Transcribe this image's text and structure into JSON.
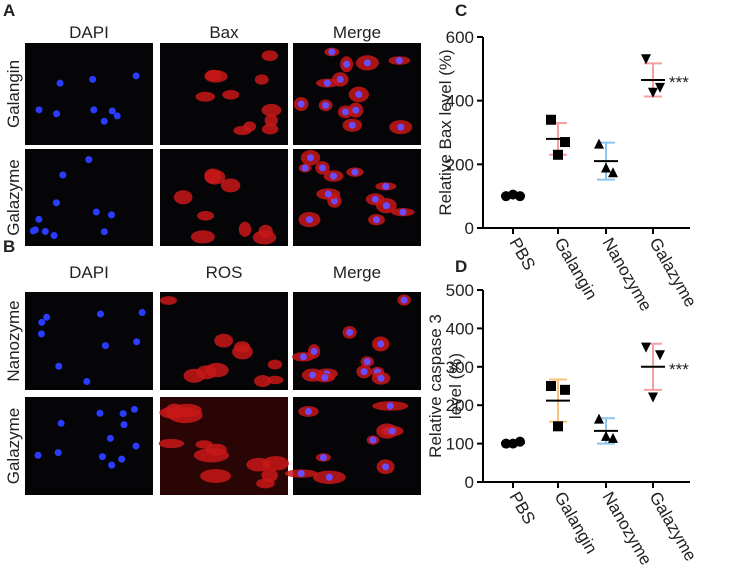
{
  "panel_labels": [
    "A",
    "B",
    "C",
    "D"
  ],
  "panel_a": {
    "columns": [
      "DAPI",
      "Bax",
      "Merge"
    ],
    "rows": [
      "Galangin",
      "Galazyme"
    ]
  },
  "panel_b": {
    "columns": [
      "DAPI",
      "ROS",
      "Merge"
    ],
    "rows": [
      "Nanozyme",
      "Galazyme"
    ]
  },
  "chart_data": [
    {
      "type": "dotplot",
      "ylabel": [
        "Relative Bax level (%)"
      ],
      "categories": [
        "PBS",
        "Galangin",
        "Nanozyme",
        "Galazyme"
      ],
      "markers": [
        "circle",
        "square",
        "triangle",
        "triangle-down"
      ],
      "errorbar_colors": [
        "#555555",
        "#f4a0a0",
        "#8cc6ec",
        "#f4a0a0"
      ],
      "points": [
        [
          100,
          100,
          105
        ],
        [
          340,
          270,
          230
        ],
        [
          265,
          175,
          190
        ],
        [
          530,
          440,
          425
        ]
      ],
      "means": [
        102,
        280,
        210,
        465
      ],
      "errors": [
        3,
        50,
        58,
        52
      ],
      "annotation": "***",
      "ylim": [
        0,
        600
      ],
      "yticks": [
        0,
        200,
        400,
        600
      ]
    },
    {
      "type": "dotplot",
      "ylabel": [
        "Relative caspase 3",
        "level (%)"
      ],
      "categories": [
        "PBS",
        "Galangin",
        "Nanozyme",
        "Galazyme"
      ],
      "markers": [
        "circle",
        "square",
        "triangle",
        "triangle-down"
      ],
      "errorbar_colors": [
        "#555555",
        "#f6c27c",
        "#8cc6ec",
        "#f4a0a0"
      ],
      "points": [
        [
          100,
          105,
          100
        ],
        [
          250,
          240,
          145
        ],
        [
          165,
          115,
          120
        ],
        [
          350,
          330,
          220
        ]
      ],
      "means": [
        102,
        212,
        133,
        300
      ],
      "errors": [
        3,
        55,
        33,
        60
      ],
      "annotation": "***",
      "ylim": [
        0,
        500
      ],
      "yticks": [
        0,
        100,
        200,
        300,
        400,
        500
      ]
    }
  ]
}
